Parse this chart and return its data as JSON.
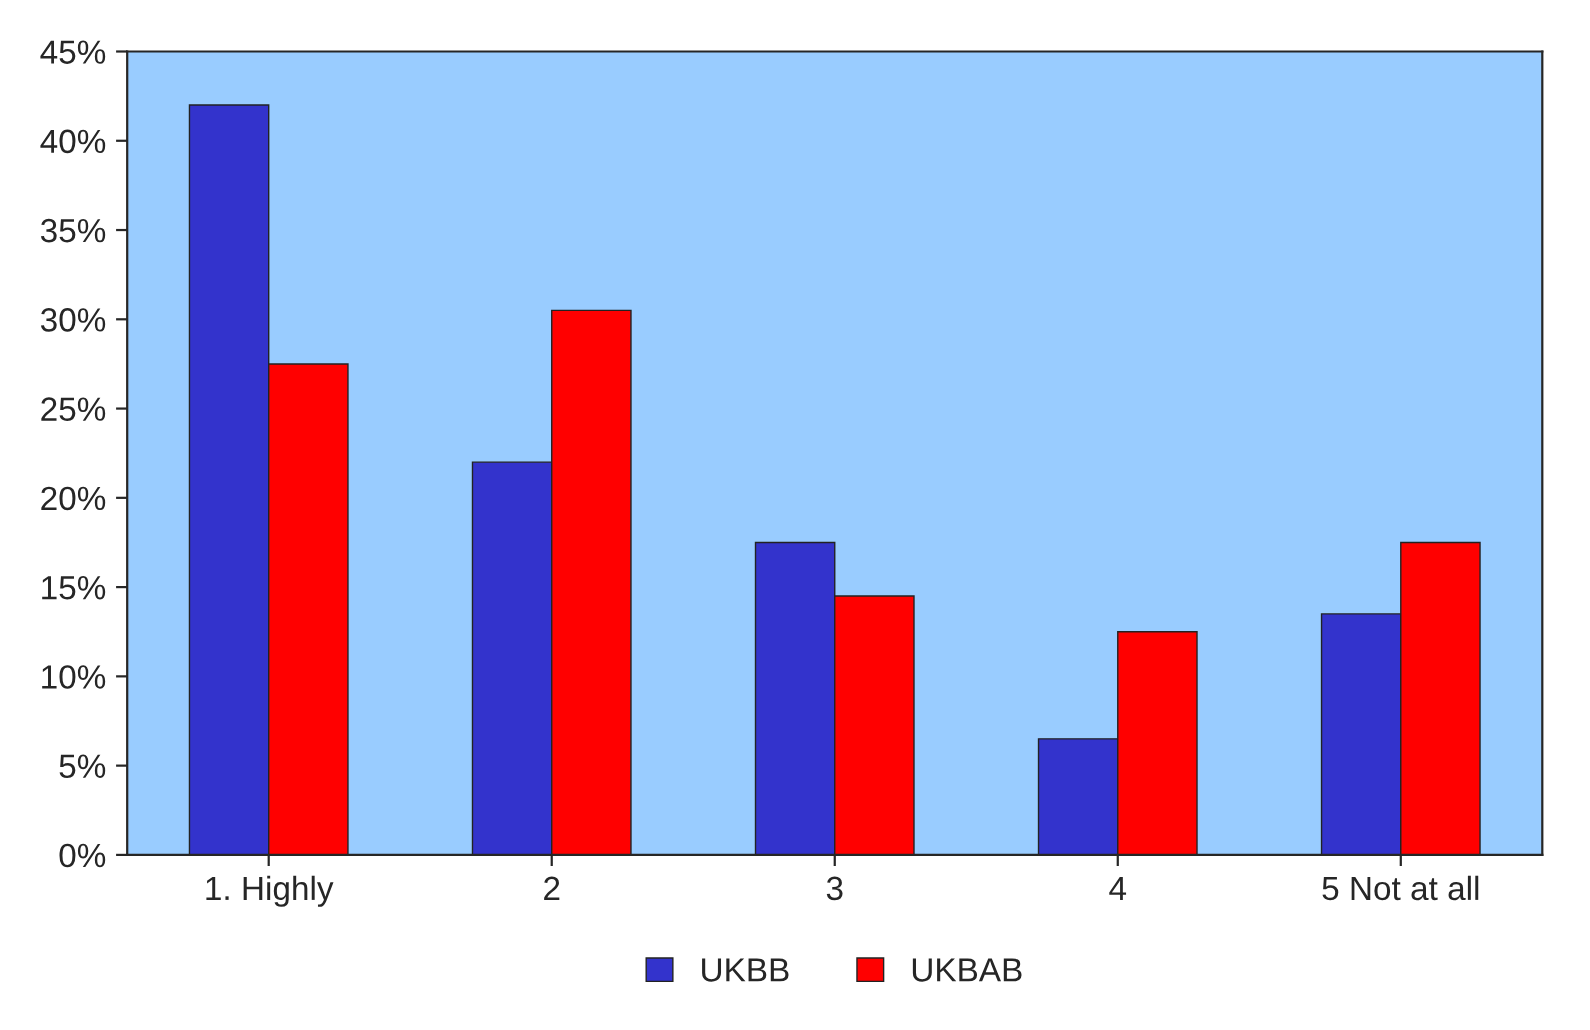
{
  "chart_data": {
    "type": "bar",
    "categories": [
      "1. Highly",
      "2",
      "3",
      "4",
      "5 Not at all"
    ],
    "series": [
      {
        "name": "UKBB",
        "color": "#3333cc",
        "values": [
          42,
          22,
          17.5,
          6.5,
          13.5
        ]
      },
      {
        "name": "UKBAB",
        "color": "#ff0000",
        "values": [
          27.5,
          30.5,
          14.5,
          12.5,
          17.5
        ]
      }
    ],
    "ylim": [
      0,
      45
    ],
    "yticks": [
      {
        "value": 0,
        "label": "0%"
      },
      {
        "value": 5,
        "label": "5%"
      },
      {
        "value": 10,
        "label": "10%"
      },
      {
        "value": 15,
        "label": "15%"
      },
      {
        "value": 20,
        "label": "20%"
      },
      {
        "value": 25,
        "label": "25%"
      },
      {
        "value": 30,
        "label": "30%"
      },
      {
        "value": 35,
        "label": "35%"
      },
      {
        "value": 40,
        "label": "40%"
      },
      {
        "value": 45,
        "label": "45%"
      }
    ],
    "grid": false,
    "legend": "bottom"
  }
}
